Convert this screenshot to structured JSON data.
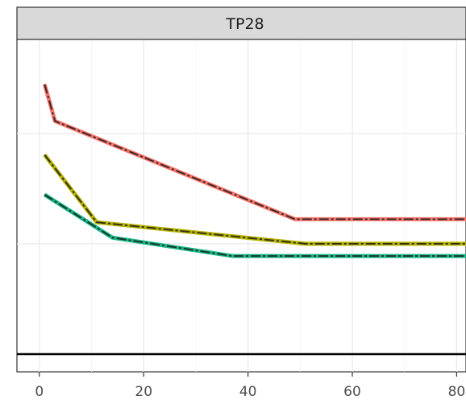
{
  "chart_data": {
    "type": "line",
    "facet_label": "TP28",
    "xlabel": "",
    "ylabel": "",
    "x_ticks": [
      0,
      20,
      40,
      60,
      80
    ],
    "xlim": [
      -4,
      82
    ],
    "ylim": [
      0,
      1
    ],
    "grid": true,
    "legend": "none",
    "hline": {
      "y": 0.0,
      "color": "#000000"
    },
    "series": [
      {
        "color": "#F8766D",
        "x": [
          1,
          3,
          49,
          82
        ],
        "y": [
          0.88,
          0.76,
          0.44,
          0.44
        ]
      },
      {
        "color": "#B7B400",
        "x": [
          1,
          11,
          51,
          82
        ],
        "y": [
          0.65,
          0.43,
          0.36,
          0.36
        ]
      },
      {
        "color": "#1BB88A",
        "x": [
          1,
          14,
          37,
          82
        ],
        "y": [
          0.52,
          0.38,
          0.32,
          0.32
        ]
      }
    ]
  }
}
